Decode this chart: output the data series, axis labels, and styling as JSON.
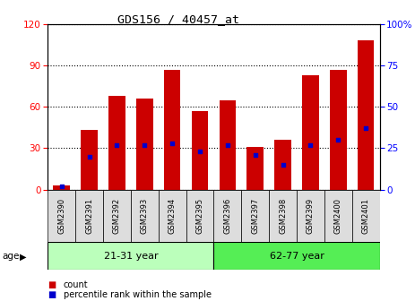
{
  "title": "GDS156 / 40457_at",
  "samples": [
    "GSM2390",
    "GSM2391",
    "GSM2392",
    "GSM2393",
    "GSM2394",
    "GSM2395",
    "GSM2396",
    "GSM2397",
    "GSM2398",
    "GSM2399",
    "GSM2400",
    "GSM2401"
  ],
  "counts": [
    3,
    43,
    68,
    66,
    87,
    57,
    65,
    31,
    36,
    83,
    87,
    108
  ],
  "percentiles": [
    2,
    20,
    27,
    27,
    28,
    23,
    27,
    21,
    15,
    27,
    30,
    37
  ],
  "groups": [
    {
      "label": "21-31 year",
      "start": 0,
      "end": 6
    },
    {
      "label": "62-77 year",
      "start": 6,
      "end": 12
    }
  ],
  "group_colors": [
    "#bbffbb",
    "#55ee55"
  ],
  "ylim_left": [
    0,
    120
  ],
  "ylim_right": [
    0,
    100
  ],
  "yticks_left": [
    0,
    30,
    60,
    90,
    120
  ],
  "yticks_right": [
    0,
    25,
    50,
    75,
    100
  ],
  "yticklabels_right": [
    "0",
    "25",
    "50",
    "75",
    "100%"
  ],
  "bar_color": "#cc0000",
  "dot_color": "#0000cc",
  "bar_width": 0.6,
  "age_label": "age",
  "legend_items": [
    {
      "color": "#cc0000",
      "label": "count"
    },
    {
      "color": "#0000cc",
      "label": "percentile rank within the sample"
    }
  ]
}
